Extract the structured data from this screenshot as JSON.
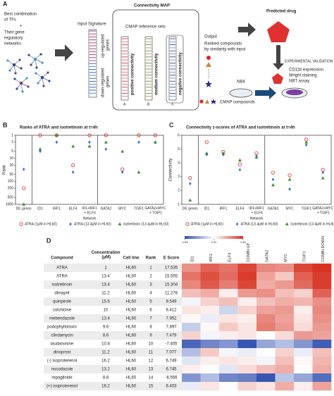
{
  "panel_labels": [
    "A",
    "B",
    "C",
    "D"
  ],
  "panel_a": {
    "title_lines": [
      "Best combination",
      "of TFs"
    ],
    "plus": "+",
    "subtitle_lines": [
      "Their gene",
      "regulatory",
      "networks"
    ],
    "input_signature": "Input Signature",
    "up_label": [
      "up-regulated",
      "genes"
    ],
    "down_label": [
      "down-regulated",
      "genes"
    ],
    "cmap_title": "Connectivity MAP",
    "cmap_subtitle": "CMAP reference sets",
    "sets": [
      {
        "label": "positive connectivity",
        "id": "A"
      },
      {
        "label": "medium connectivity",
        "id": "B"
      },
      {
        "label": "negative connectivity",
        "id": "X"
      }
    ],
    "output_title": "Output",
    "output_lines": [
      "Ranked compounds",
      "by similarity with input"
    ],
    "compounds": "CMAP compounds",
    "predicted": "Predicted drug",
    "validation": "EXPERIMENTAL VALIDATION",
    "cell_line": "NB4",
    "assays": [
      "CD11b expression",
      "Wright staining",
      "NBT assay"
    ]
  },
  "chart_data": [
    {
      "type": "scatter",
      "title": "Ranks of ATRA and isotretinoin at t=4h",
      "y_label": "Rank",
      "x_label": "Network",
      "log_scale": true,
      "y_reversed": true,
      "categories": [
        "DE genes",
        "ID1",
        "IRF1",
        "ELF4",
        "ID1+IRF1 + ELF4",
        "GATA2",
        "MYC",
        "TGIF1",
        "GATA2+MYC + TGIF1"
      ],
      "ylim": [
        1,
        1000
      ],
      "yticks": [
        1,
        2,
        5,
        10,
        20,
        50,
        100,
        200,
        500,
        1000
      ],
      "series": [
        {
          "name": "ATRA (1μM in HL60)",
          "color": "#d62728",
          "marker": "circle-open",
          "values": [
            200,
            1,
            1,
            20,
            1,
            1,
            30,
            1,
            1
          ]
        },
        {
          "name": "ATRA (13.4μM in HL60)",
          "color": "#3a6fd8",
          "marker": "diamond",
          "values": [
            30,
            5,
            2,
            40,
            2,
            4,
            40,
            2,
            2
          ]
        },
        {
          "name": "isotretinoin (13.4μM in HL60)",
          "color": "#3a8a2e",
          "marker": "triangle",
          "values": [
            1000,
            4,
            1,
            3,
            3,
            2,
            5,
            40,
            2
          ]
        }
      ]
    },
    {
      "type": "scatter",
      "title": "Connectivity z-scores of ATRA and isotretinoin at t=4h",
      "y_label": "Connectivity",
      "x_label": "Network",
      "log_scale": false,
      "y_reversed": false,
      "categories": [
        "DE genes",
        "ID1",
        "IRF1",
        "ELF4",
        "ID1+IRF1 + ELF4",
        "GATA2",
        "MYC",
        "TGIF1",
        "GATA2+MYC + TGIF1"
      ],
      "ylim": [
        1,
        6
      ],
      "yticks": [
        1,
        2,
        3,
        4,
        5,
        6
      ],
      "series": [
        {
          "name": "ATRA (1μM in HL60)",
          "color": "#d62728",
          "marker": "circle-open",
          "values": [
            2.9,
            5.5,
            4.8,
            3.9,
            4.7,
            3.3,
            3.1,
            5.7,
            3.5
          ]
        },
        {
          "name": "ATRA (13.4μM in HL60)",
          "color": "#3a6fd8",
          "marker": "diamond",
          "values": [
            2.5,
            4.6,
            4.6,
            3.5,
            4.5,
            2.8,
            2.1,
            5.3,
            3.3
          ]
        },
        {
          "name": "isotretinoin (13.4μM in HL60)",
          "color": "#3a8a2e",
          "marker": "triangle",
          "values": [
            1.3,
            4.7,
            4.7,
            4.2,
            4.4,
            2.4,
            2.8,
            5.5,
            2.9
          ]
        }
      ]
    },
    {
      "type": "heatmap",
      "x_categories": [
        "ID1",
        "IRF1",
        "ELF4",
        "COMBI.UP",
        "GATA2",
        "MYC",
        "TGIF1",
        "COMBI.DOWN"
      ],
      "zlim": [
        -1.89,
        2.53
      ],
      "zticks": [
        -1.89,
        0.32,
        2.53
      ],
      "colors": [
        "#2f4fb0",
        "#ffffff",
        "#d7301f"
      ],
      "values": [
        [
          1.5,
          2.0,
          1.8,
          2.3,
          1.6,
          1.5,
          2.3,
          2.5
        ],
        [
          1.8,
          2.2,
          1.9,
          2.4,
          1.3,
          0.9,
          2.0,
          2.4
        ],
        [
          1.6,
          2.1,
          1.7,
          2.3,
          1.2,
          1.4,
          1.9,
          2.4
        ],
        [
          1.0,
          1.2,
          0.5,
          1.4,
          1.5,
          1.0,
          0.8,
          2.0
        ],
        [
          0.2,
          0.8,
          1.0,
          0.5,
          1.0,
          1.2,
          1.1,
          1.5
        ],
        [
          0.6,
          0.5,
          -0.2,
          0.8,
          1.3,
          1.4,
          0.5,
          1.6
        ],
        [
          0.4,
          0.1,
          0.6,
          0.5,
          1.6,
          1.3,
          0.6,
          1.5
        ],
        [
          -0.3,
          0.4,
          0.9,
          0.6,
          1.7,
          1.4,
          0.7,
          1.4
        ],
        [
          0.8,
          0.2,
          0.5,
          0.6,
          0.3,
          0.7,
          1.4,
          1.3
        ],
        [
          -1.6,
          -1.2,
          -1.0,
          -1.8,
          -0.8,
          -0.5,
          -1.0,
          -1.7
        ],
        [
          -0.5,
          0.9,
          0.2,
          0.1,
          0.3,
          0.8,
          0.1,
          1.0
        ],
        [
          0.0,
          0.5,
          0.6,
          0.5,
          0.2,
          1.0,
          0.4,
          1.1
        ],
        [
          0.5,
          0.3,
          0.0,
          0.7,
          1.0,
          1.2,
          0.3,
          1.2
        ],
        [
          -1.0,
          -0.5,
          -1.2,
          -1.3,
          -1.8,
          -0.4,
          -0.8,
          -1.5
        ],
        [
          0.1,
          0.6,
          0.3,
          0.8,
          0.6,
          1.2,
          0.5,
          1.3
        ]
      ]
    }
  ],
  "table": {
    "columns": [
      "Compound",
      "Concentration (μM)",
      "Cell line",
      "Rank",
      "E Score"
    ],
    "rows": [
      [
        "ATRA",
        "1",
        "HL60",
        "1",
        "17.535"
      ],
      [
        "ATRA",
        "13.4",
        "HL60",
        "2",
        "15.555"
      ],
      [
        "isotretinoin",
        "13.4",
        "HL60",
        "3",
        "15.304"
      ],
      [
        "dimaprit",
        "11.2",
        "HL60",
        "4",
        "11.278"
      ],
      [
        "quinpirole",
        "15.6",
        "HL60",
        "5",
        "9.549"
      ],
      [
        "colchicine",
        "10",
        "HL60",
        "6",
        "8.412"
      ],
      [
        "mebendazole",
        "13.4",
        "HL60",
        "7",
        "7.952"
      ],
      [
        "podophyllotoxin",
        "9.6",
        "HL60",
        "8",
        "7.897"
      ],
      [
        "clindamycin",
        "8.6",
        "HL60",
        "9",
        "7.479"
      ],
      [
        "laudanosine",
        "10.8",
        "HL60",
        "10",
        "-7.405"
      ],
      [
        "dinoprost",
        "11.2",
        "HL60",
        "11",
        "7.077"
      ],
      [
        "(-) isoproterenol",
        "16.2",
        "HL60",
        "12",
        "6.749"
      ],
      [
        "nocodazole",
        "13.2",
        "HL60",
        "13",
        "6.745"
      ],
      [
        "repaglinide",
        "8.8",
        "HL60",
        "14",
        "-6.556"
      ],
      [
        "(+) isoproterenol",
        "16.2",
        "HL60",
        "15",
        "6.403"
      ]
    ]
  }
}
